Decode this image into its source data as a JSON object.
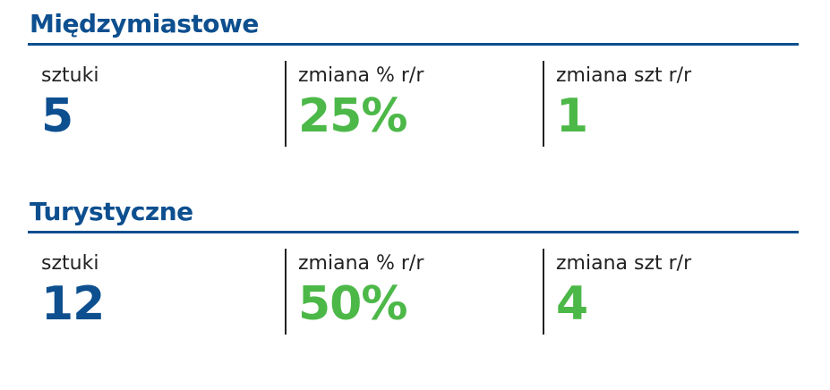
{
  "colors": {
    "title": "#0d4f8f",
    "count": "#0d4f8f",
    "change": "#4cb848"
  },
  "sections": [
    {
      "title": "Międzymiastowe",
      "stats": [
        {
          "label": "sztuki",
          "value": "5"
        },
        {
          "label": "zmiana % r/r",
          "value": "25%"
        },
        {
          "label": "zmiana szt r/r",
          "value": "1"
        }
      ]
    },
    {
      "title": "Turystyczne",
      "stats": [
        {
          "label": "sztuki",
          "value": "12"
        },
        {
          "label": "zmiana % r/r",
          "value": "50%"
        },
        {
          "label": "zmiana szt r/r",
          "value": "4"
        }
      ]
    }
  ]
}
